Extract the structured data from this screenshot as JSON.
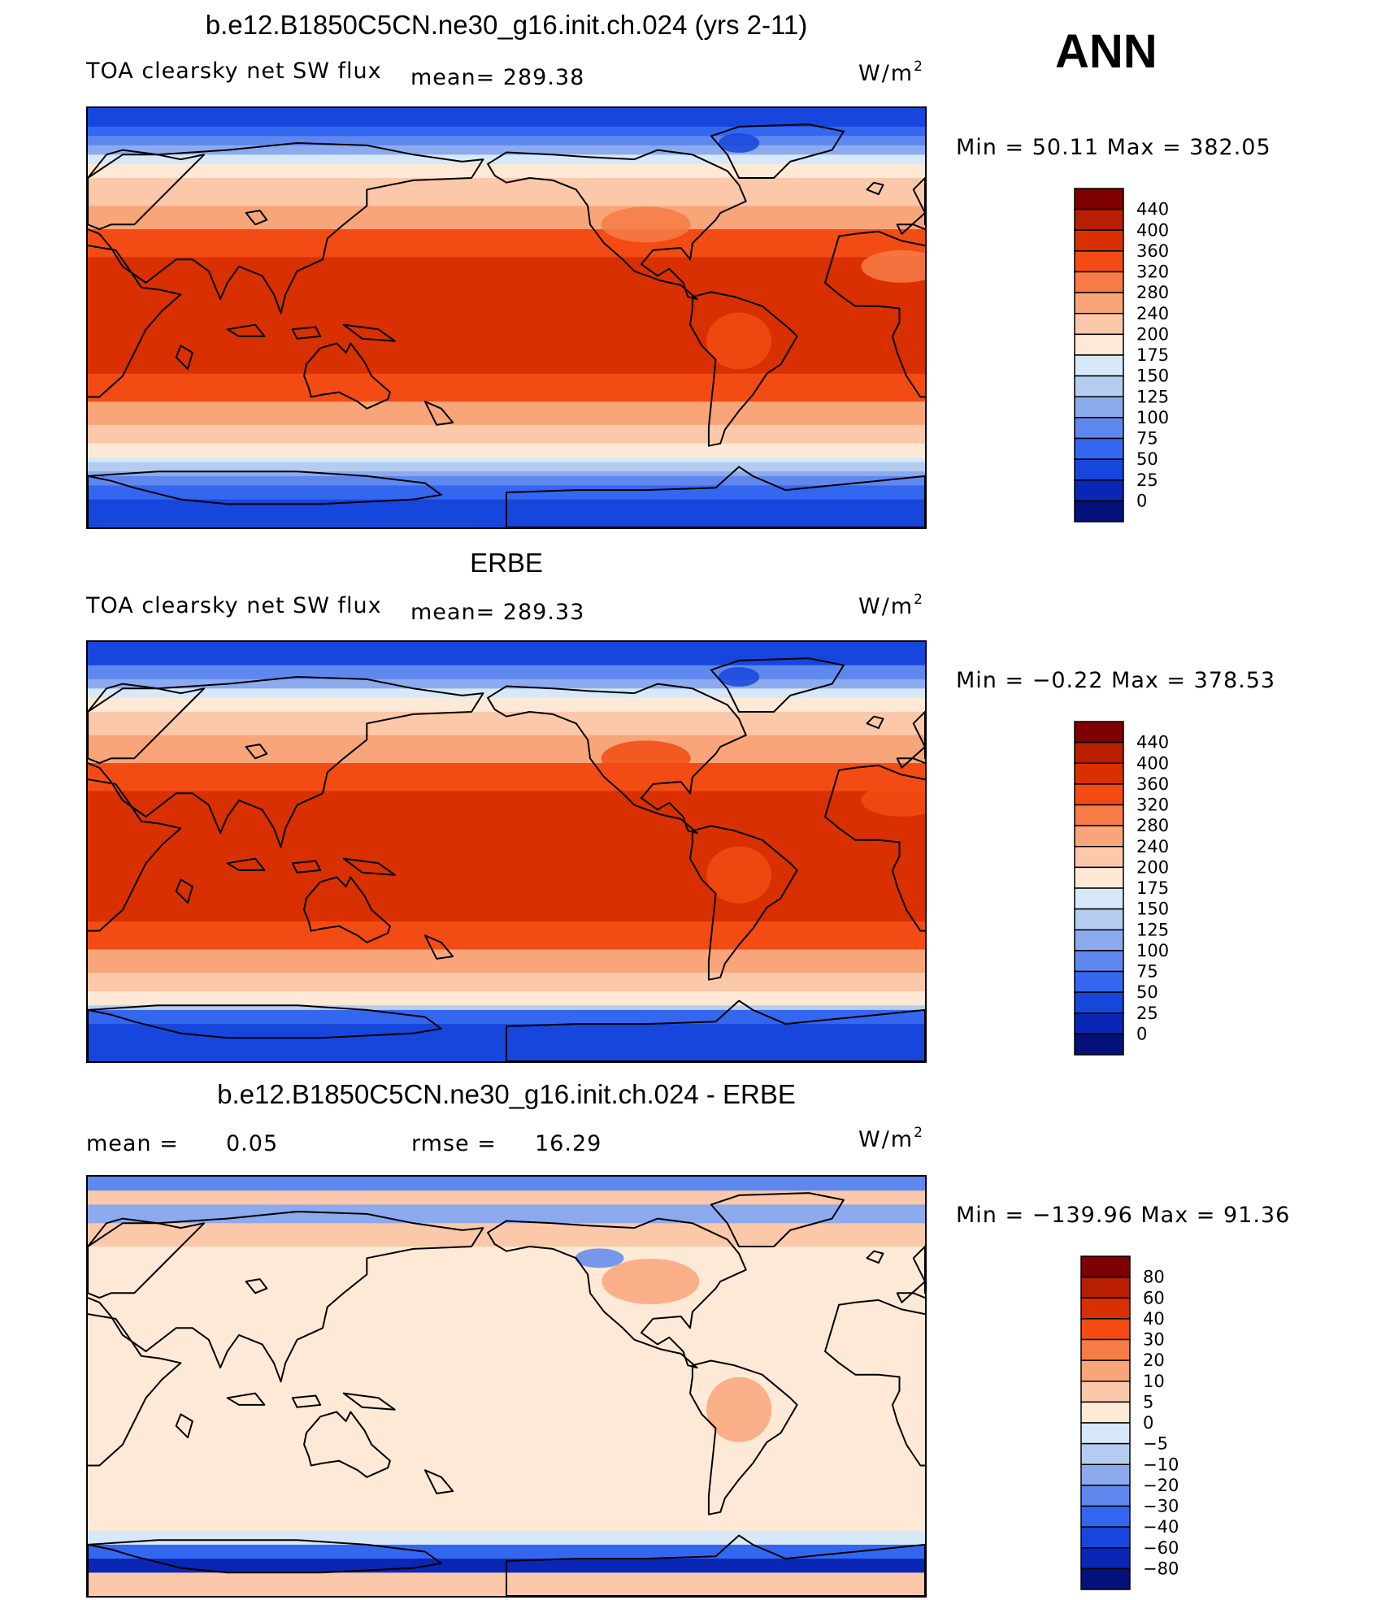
{
  "season": "ANN",
  "units_base": "W/m",
  "units_exp": "2",
  "panels": [
    {
      "title": "b.e12.B1850C5CN.ne30_g16.init.ch.024 (yrs 2-11)",
      "subtitle": "TOA clearsky net SW flux",
      "mean_text": "mean= 289.38",
      "minmax": "Min =   50.11  Max  =  382.05",
      "map_type": "model"
    },
    {
      "title": "ERBE",
      "subtitle": "TOA clearsky net SW flux",
      "mean_text": "mean= 289.33",
      "minmax": "Min =   −0.22  Max  =  378.53",
      "map_type": "obs"
    },
    {
      "title": "b.e12.B1850C5CN.ne30_g16.init.ch.024 - ERBE",
      "mean_label": "mean =",
      "mean_value": "0.05",
      "rmse_label": "rmse =",
      "rmse_value": "16.29",
      "minmax": "Min = −139.96  Max  =   91.36",
      "map_type": "diff"
    }
  ],
  "chart_data": [
    {
      "type": "heatmap",
      "title": "b.e12.B1850C5CN.ne30_g16.init.ch.024 (yrs 2-11)",
      "variable": "TOA clearsky net SW flux",
      "units": "W/m2",
      "mean": 289.38,
      "min": 50.11,
      "max": 382.05,
      "colorbar_levels": [
        "440",
        "400",
        "360",
        "320",
        "280",
        "240",
        "200",
        "175",
        "150",
        "125",
        "100",
        "75",
        "50",
        "25",
        "0"
      ],
      "colorbar_colors": [
        "#7f0000",
        "#b81e00",
        "#d83000",
        "#f24c14",
        "#f77b46",
        "#f9a57a",
        "#fcc8aa",
        "#fde9d6",
        "#d7e8f8",
        "#b5ccf1",
        "#8caaee",
        "#5f88ef",
        "#3467f0",
        "#1646dc",
        "#0a26b4",
        "#041178"
      ]
    },
    {
      "type": "heatmap",
      "title": "ERBE",
      "variable": "TOA clearsky net SW flux",
      "units": "W/m2",
      "mean": 289.33,
      "min": -0.22,
      "max": 378.53,
      "colorbar_levels": [
        "440",
        "400",
        "360",
        "320",
        "280",
        "240",
        "200",
        "175",
        "150",
        "125",
        "100",
        "75",
        "50",
        "25",
        "0"
      ],
      "colorbar_colors": [
        "#7f0000",
        "#b81e00",
        "#d83000",
        "#f24c14",
        "#f77b46",
        "#f9a57a",
        "#fcc8aa",
        "#fde9d6",
        "#d7e8f8",
        "#b5ccf1",
        "#8caaee",
        "#5f88ef",
        "#3467f0",
        "#1646dc",
        "#0a26b4",
        "#041178"
      ]
    },
    {
      "type": "heatmap",
      "title": "b.e12.B1850C5CN.ne30_g16.init.ch.024 - ERBE",
      "units": "W/m2",
      "mean": 0.05,
      "rmse": 16.29,
      "min": -139.96,
      "max": 91.36,
      "colorbar_levels": [
        "80",
        "60",
        "40",
        "30",
        "20",
        "10",
        "5",
        "0",
        "−5",
        "−10",
        "−20",
        "−30",
        "−40",
        "−60",
        "−80"
      ],
      "colorbar_colors": [
        "#7f0000",
        "#b81e00",
        "#d83000",
        "#f24c14",
        "#f77b46",
        "#f9a57a",
        "#fcc8aa",
        "#fde9d6",
        "#d7e8f8",
        "#b5ccf1",
        "#8caaee",
        "#5f88ef",
        "#3467f0",
        "#1646dc",
        "#0a26b4",
        "#041178"
      ]
    }
  ]
}
